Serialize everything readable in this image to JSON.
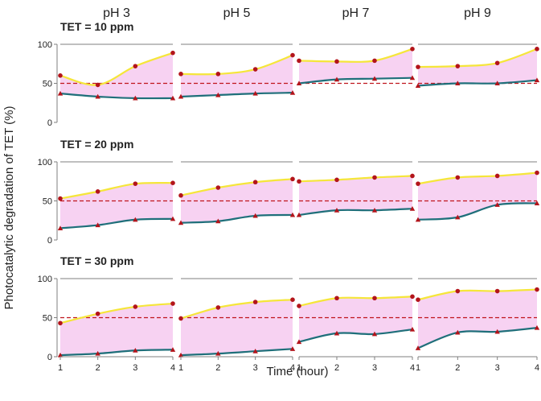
{
  "chart_data": {
    "type": "line",
    "title": "",
    "xlabel": "Time (hour)",
    "ylabel": "Photocatalytic degradation of TET (%)",
    "x": [
      1,
      2,
      3,
      4
    ],
    "x_ticks": [
      "1",
      "2",
      "3",
      "4"
    ],
    "y_ticks": [
      "0",
      "50",
      "100"
    ],
    "ylim": [
      0,
      100
    ],
    "reference_line": 50,
    "columns": [
      "pH 3",
      "pH 5",
      "pH 7",
      "pH 9"
    ],
    "rows": [
      "TET = 10 ppm",
      "TET = 20 ppm",
      "TET = 30 ppm"
    ],
    "colors": {
      "upper_line": "#f5e63a",
      "lower_line": "#1f6f7a",
      "fill": "#f7d2f2",
      "marker_upper": "#b3141b",
      "marker_lower": "#b3141b",
      "reference": "#c0151d",
      "frame": "#7f7f7f"
    },
    "panels": [
      [
        {
          "upper": [
            60,
            48,
            72,
            89
          ],
          "lower": [
            37,
            33,
            31,
            31
          ]
        },
        {
          "upper": [
            62,
            62,
            68,
            86
          ],
          "lower": [
            33,
            35,
            37,
            38
          ]
        },
        {
          "upper": [
            79,
            78,
            79,
            94
          ],
          "lower": [
            50,
            55,
            56,
            57
          ]
        },
        {
          "upper": [
            71,
            72,
            76,
            94
          ],
          "lower": [
            47,
            50,
            50,
            54
          ]
        }
      ],
      [
        {
          "upper": [
            53,
            62,
            72,
            73
          ],
          "lower": [
            15,
            19,
            26,
            27
          ]
        },
        {
          "upper": [
            57,
            67,
            74,
            78
          ],
          "lower": [
            22,
            24,
            31,
            32
          ]
        },
        {
          "upper": [
            75,
            77,
            80,
            82
          ],
          "lower": [
            32,
            38,
            38,
            40
          ]
        },
        {
          "upper": [
            72,
            80,
            82,
            86
          ],
          "lower": [
            26,
            29,
            45,
            47
          ]
        }
      ],
      [
        {
          "upper": [
            43,
            55,
            64,
            68
          ],
          "lower": [
            2,
            4,
            8,
            9
          ]
        },
        {
          "upper": [
            49,
            63,
            70,
            73
          ],
          "lower": [
            2,
            4,
            7,
            10
          ]
        },
        {
          "upper": [
            65,
            75,
            75,
            77
          ],
          "lower": [
            19,
            30,
            29,
            35
          ]
        },
        {
          "upper": [
            73,
            84,
            84,
            86
          ],
          "lower": [
            11,
            31,
            32,
            37
          ]
        }
      ]
    ]
  }
}
